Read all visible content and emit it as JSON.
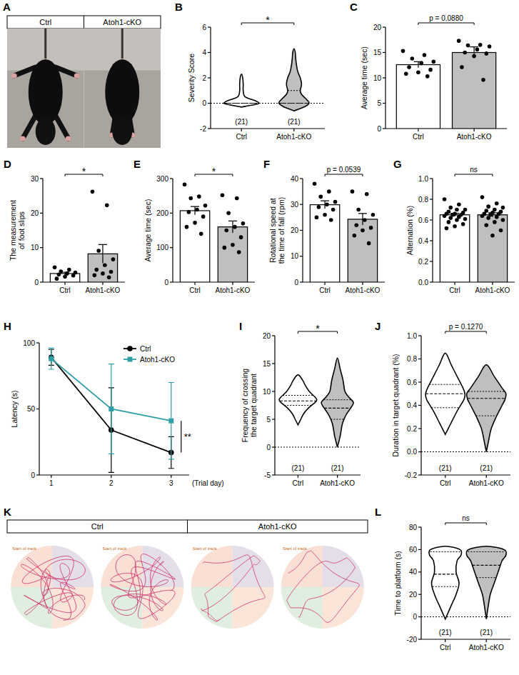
{
  "chart_data": [
    {
      "panel": "A",
      "type": "image",
      "labels": [
        "Ctrl",
        "Atoh1-cKO"
      ]
    },
    {
      "panel": "B",
      "type": "violin",
      "categories": [
        "Ctrl",
        "Atoh1-cKO"
      ],
      "colors": [
        "#ffffff",
        "#bfbfbf"
      ],
      "ylabel": "Severity Score",
      "ylim": [
        -2,
        6
      ],
      "yticks": [
        -2,
        0,
        2,
        4,
        6
      ],
      "hline": 0,
      "n_labels": [
        "(21)",
        "(21)"
      ],
      "annotation": "*",
      "groups": [
        {
          "y": [
            -0.3,
            -0.1,
            0,
            0.2,
            0.5,
            1,
            1.5,
            2,
            2.3
          ],
          "density": [
            0,
            0.55,
            0.7,
            0.55,
            0.15,
            0.07,
            0.07,
            0.05,
            0
          ],
          "median": 0,
          "q1": 0,
          "q3": 0
        },
        {
          "y": [
            -0.6,
            -0.3,
            0,
            0.3,
            0.7,
            1,
            1.5,
            2,
            2.5,
            3,
            3.5,
            4,
            4.3
          ],
          "density": [
            0,
            0.4,
            0.6,
            0.5,
            0.3,
            0.25,
            0.3,
            0.25,
            0.15,
            0.1,
            0.07,
            0.05,
            0
          ],
          "median": 0,
          "q1": 0,
          "q3": 1
        }
      ]
    },
    {
      "panel": "C",
      "type": "bar",
      "categories": [
        "Ctrl",
        "Atoh1-cKO"
      ],
      "colors": [
        "#ffffff",
        "#bfbfbf"
      ],
      "ylabel": "Average time (sec)",
      "ylim": [
        0,
        20
      ],
      "yticks": [
        0,
        5,
        10,
        15,
        20
      ],
      "annotation": "p = 0.0880",
      "values": [
        12.6,
        15.0
      ],
      "errors": [
        0.6,
        1.1
      ],
      "points": [
        [
          15.3,
          14.5,
          13.8,
          13.2,
          12.9,
          12.1,
          11.6,
          11.1,
          10.8,
          10.3
        ],
        [
          17.3,
          16.5,
          16.4,
          16.2,
          15.6,
          15.0,
          14.8,
          14.3,
          12.1,
          9.6
        ]
      ]
    },
    {
      "panel": "D",
      "type": "bar",
      "categories": [
        "Ctrl",
        "Atoh1-cKO"
      ],
      "colors": [
        "#ffffff",
        "#bfbfbf"
      ],
      "ylabel": "The measurement of foot slips",
      "ylim": [
        0,
        30
      ],
      "yticks": [
        0,
        10,
        20,
        30
      ],
      "annotation": "*",
      "values": [
        2.5,
        8.2
      ],
      "errors": [
        0.4,
        2.7
      ],
      "points": [
        [
          4.3,
          3.6,
          3.1,
          2.8,
          2.5,
          2.2,
          1.9,
          1.6,
          1.0
        ],
        [
          26.2,
          22.3,
          9.1,
          6.6,
          4.9,
          3.6,
          3.0,
          2.5,
          2.0,
          1.4
        ]
      ]
    },
    {
      "panel": "E",
      "type": "bar",
      "categories": [
        "Ctrl",
        "Atoh1-cKO"
      ],
      "colors": [
        "#ffffff",
        "#bfbfbf"
      ],
      "ylabel": "Average time (sec)",
      "ylim": [
        0,
        300
      ],
      "yticks": [
        0,
        100,
        200,
        300
      ],
      "annotation": "*",
      "values": [
        207,
        160
      ],
      "errors": [
        12,
        17
      ],
      "points": [
        [
          283,
          248,
          243,
          222,
          210,
          203,
          190,
          172,
          160,
          140
        ],
        [
          252,
          243,
          200,
          170,
          160,
          150,
          130,
          108,
          100,
          87
        ]
      ]
    },
    {
      "panel": "F",
      "type": "bar",
      "categories": [
        "Ctrl",
        "Atoh1-cKO"
      ],
      "colors": [
        "#ffffff",
        "#bfbfbf"
      ],
      "ylabel": "Rotational speed at the time of fall (rpm)",
      "ylim": [
        0,
        40
      ],
      "yticks": [
        0,
        10,
        20,
        30,
        40
      ],
      "annotation": "p = 0.0539",
      "values": [
        29.9,
        24.3
      ],
      "errors": [
        1.5,
        2.2
      ],
      "points": [
        [
          38,
          35,
          33,
          31,
          30,
          29,
          28,
          26,
          25,
          24
        ],
        [
          35,
          34,
          28,
          26,
          24,
          22,
          21,
          20,
          18,
          15
        ]
      ]
    },
    {
      "panel": "G",
      "type": "bar",
      "categories": [
        "Ctrl",
        "Atoh1-cKO"
      ],
      "colors": [
        "#ffffff",
        "#bfbfbf"
      ],
      "ylabel": "Alternation (%)",
      "ylim": [
        0,
        1
      ],
      "yticks": [
        {
          "value": 0,
          "label": "0.0"
        },
        0.2,
        0.4,
        0.6,
        0.8,
        {
          "value": 1,
          "label": "1.0"
        }
      ],
      "annotation": "ns",
      "values": [
        0.65,
        0.65
      ],
      "errors": [
        0.015,
        0.02
      ],
      "points": [
        [
          0.8,
          0.75,
          0.72,
          0.7,
          0.7,
          0.68,
          0.67,
          0.66,
          0.66,
          0.65,
          0.65,
          0.64,
          0.63,
          0.62,
          0.61,
          0.6,
          0.58,
          0.56,
          0.54,
          0.52
        ],
        [
          0.82,
          0.76,
          0.73,
          0.72,
          0.7,
          0.69,
          0.68,
          0.67,
          0.66,
          0.66,
          0.65,
          0.64,
          0.63,
          0.62,
          0.6,
          0.58,
          0.55,
          0.5,
          0.45
        ]
      ]
    },
    {
      "panel": "H",
      "type": "line",
      "x": [
        1,
        2,
        3
      ],
      "xlim": [
        0.8,
        3.3
      ],
      "xticks": [
        1,
        2,
        3
      ],
      "xlabel": "(Trial day)",
      "ylabel": "Latency (s)",
      "ylim": [
        0,
        100
      ],
      "yticks": [
        0,
        50,
        100
      ],
      "legend": "upper right",
      "annotation": "**",
      "series": [
        {
          "name": "Ctrl",
          "color": "#000000",
          "marker": "circle",
          "values": [
            89,
            34,
            17
          ],
          "errors": [
            6,
            32,
            12
          ]
        },
        {
          "name": "Atoh1-cKO",
          "color": "#2f9fa6",
          "marker": "square",
          "values": [
            88,
            50,
            41
          ],
          "errors": [
            8,
            34,
            29
          ]
        }
      ]
    },
    {
      "panel": "I",
      "type": "violin",
      "categories": [
        "Ctrl",
        "Atoh1-cKO"
      ],
      "colors": [
        "#ffffff",
        "#bfbfbf"
      ],
      "ylabel": "Frequency of crossing the target quadrant",
      "ylim": [
        -5,
        20
      ],
      "yticks": [
        -5,
        0,
        5,
        10,
        15,
        20
      ],
      "hline": 0,
      "n_labels": [
        "(21)",
        "(21)"
      ],
      "annotation": "*",
      "groups": [
        {
          "y": [
            4,
            5,
            6,
            7,
            8,
            8.5,
            9,
            10,
            11,
            12,
            13
          ],
          "density": [
            0,
            0.15,
            0.3,
            0.55,
            0.9,
            1,
            0.9,
            0.6,
            0.4,
            0.25,
            0
          ],
          "median": 8.3,
          "q1": 7.5,
          "q3": 9.3
        },
        {
          "y": [
            0,
            2,
            4,
            5,
            6,
            7,
            8,
            9,
            10,
            12,
            14,
            16
          ],
          "density": [
            0,
            0.15,
            0.25,
            0.35,
            0.5,
            0.7,
            0.85,
            0.6,
            0.4,
            0.3,
            0.15,
            0
          ],
          "median": 7,
          "q1": 5,
          "q3": 8.5
        }
      ]
    },
    {
      "panel": "J",
      "type": "violin",
      "categories": [
        "Ctrl",
        "Atoh1-cKO"
      ],
      "colors": [
        "#ffffff",
        "#bfbfbf"
      ],
      "ylabel": "Duration in target quadrant (%)",
      "ylim": [
        -0.2,
        1
      ],
      "yticks": [
        -0.2,
        {
          "value": 0,
          "label": "0.0"
        },
        0.2,
        0.4,
        0.6,
        0.8,
        {
          "value": 1,
          "label": "1.0"
        }
      ],
      "hline": 0,
      "n_labels": [
        "(21)",
        "(21)"
      ],
      "annotation": "p = 0.1270",
      "groups": [
        {
          "y": [
            0.15,
            0.25,
            0.35,
            0.45,
            0.5,
            0.55,
            0.65,
            0.75,
            0.85
          ],
          "density": [
            0,
            0.3,
            0.6,
            0.95,
            1,
            0.9,
            0.6,
            0.3,
            0
          ],
          "median": 0.5,
          "q1": 0.38,
          "q3": 0.58
        },
        {
          "y": [
            0,
            0.1,
            0.2,
            0.3,
            0.4,
            0.45,
            0.5,
            0.55,
            0.65,
            0.75
          ],
          "density": [
            0,
            0.12,
            0.25,
            0.5,
            0.8,
            0.95,
            1,
            0.8,
            0.4,
            0
          ],
          "median": 0.46,
          "q1": 0.31,
          "q3": 0.52
        }
      ]
    },
    {
      "panel": "K",
      "type": "image",
      "labels": [
        "Ctrl",
        "Atoh1-cKO"
      ],
      "caption": "Start of track"
    },
    {
      "panel": "L",
      "type": "violin",
      "categories": [
        "Ctrl",
        "Atoh1-cKO"
      ],
      "colors": [
        "#ffffff",
        "#bfbfbf"
      ],
      "ylabel": "Time to platform (s)",
      "ylim": [
        -20,
        80
      ],
      "yticks": [
        -20,
        0,
        20,
        40,
        60,
        80
      ],
      "hline": 0,
      "n_labels": [
        "(21)",
        "(21)"
      ],
      "annotation": "ns",
      "groups": [
        {
          "y": [
            -2,
            10,
            20,
            30,
            40,
            50,
            55,
            60,
            63
          ],
          "density": [
            0,
            0.3,
            0.55,
            0.7,
            0.55,
            0.6,
            0.8,
            0.75,
            0
          ],
          "median": 38,
          "q1": 27,
          "q3": 58
        },
        {
          "y": [
            -2,
            10,
            20,
            30,
            40,
            50,
            55,
            60,
            63
          ],
          "density": [
            0,
            0.1,
            0.2,
            0.4,
            0.6,
            0.8,
            1,
            0.9,
            0
          ],
          "median": 46,
          "q1": 35,
          "q3": 58
        }
      ]
    }
  ]
}
